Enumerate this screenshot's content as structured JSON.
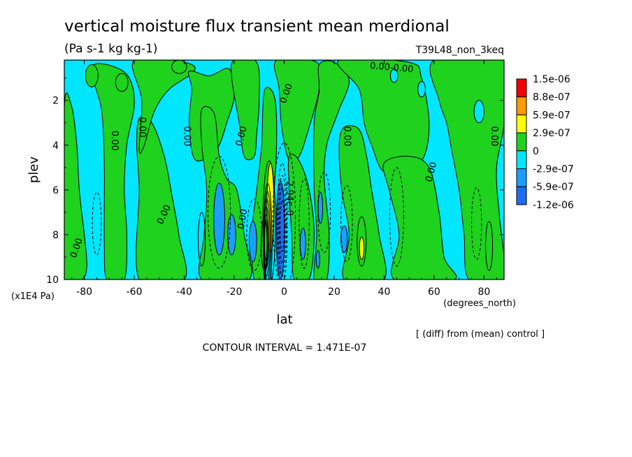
{
  "chart_data": {
    "type": "contour",
    "title": "vertical moisture flux transient mean merdional",
    "units": "(Pa s-1 kg kg-1)",
    "run_label": "T39L48_non_3keq",
    "xlabel": "lat",
    "xunits": "(degrees_north)",
    "ylabel": "plev",
    "yunits": "(x1E4 Pa)",
    "xlim": [
      -88,
      88
    ],
    "ylim": [
      10,
      0.2
    ],
    "x_ticks": [
      -80,
      -60,
      -40,
      -20,
      0,
      20,
      40,
      60,
      80
    ],
    "y_ticks": [
      2,
      4,
      6,
      8,
      10
    ],
    "x_tick_labels": [
      "-80",
      "-60",
      "-40",
      "-20",
      "0",
      "20",
      "40",
      "60",
      "80"
    ],
    "y_tick_labels": [
      "2",
      "4",
      "6",
      "8",
      "10"
    ],
    "contour_interval_text": "CONTOUR INTERVAL = 1.471E-07",
    "diff_note": "[ (diff) from (mean) control ]",
    "colorbar": {
      "labels": [
        "1.5e-06",
        "8.8e-07",
        "5.9e-07",
        "2.9e-07",
        "0",
        "-2.9e-07",
        "-5.9e-07",
        "-1.2e-06"
      ],
      "colors": [
        "#f00000",
        "#ff9a00",
        "#ffff00",
        "#1ed21e",
        "#00e6ff",
        "#19a0ff",
        "#1f6cf0"
      ]
    },
    "contour_labels": [
      "0.00",
      "0.00",
      "0.00",
      "0.00",
      "0.00",
      "0.00",
      "0.00",
      "0.00",
      "0.00",
      "0.00",
      "0.00",
      "0.00",
      "0.00",
      "0.00-0.00",
      "-2.94e-0"
    ],
    "colors": {
      "background": "#00e6ff",
      "positive": "#1ed21e",
      "yellow": "#ffff00",
      "neg_mid": "#19a0ff",
      "neg_strong": "#1f6cf0"
    },
    "regions": [
      {
        "level": "pos",
        "points": [
          [
            -88,
            2.3
          ],
          [
            -85,
            2.3
          ],
          [
            -83,
            4
          ],
          [
            -82,
            6
          ],
          [
            -80,
            8
          ],
          [
            -79,
            9.4
          ],
          [
            -81,
            10
          ],
          [
            -88,
            10
          ]
        ]
      },
      {
        "level": "pos",
        "points": [
          [
            -76,
            0.4
          ],
          [
            -68,
            0.5
          ],
          [
            -62,
            1
          ],
          [
            -60,
            2.2
          ],
          [
            -63,
            4
          ],
          [
            -64,
            6
          ],
          [
            -63,
            8
          ],
          [
            -64,
            10
          ],
          [
            -71,
            10
          ],
          [
            -72,
            8.3
          ],
          [
            -72,
            5
          ],
          [
            -73,
            2.5
          ],
          [
            -76,
            1.2
          ]
        ]
      },
      {
        "level": "pos",
        "points": [
          [
            -58,
            2.8
          ],
          [
            -53,
            3
          ],
          [
            -48,
            4.5
          ],
          [
            -45,
            6.2
          ],
          [
            -42,
            8.1
          ],
          [
            -40,
            10
          ],
          [
            -58,
            10
          ],
          [
            -58,
            6
          ],
          [
            -59,
            4
          ]
        ]
      },
      {
        "level": "pos",
        "points": [
          [
            -60,
            0.2
          ],
          [
            -40,
            0.3
          ],
          [
            -36,
            0.7
          ],
          [
            -46,
            1.5
          ],
          [
            -52,
            2.5
          ],
          [
            -56,
            4
          ],
          [
            -58,
            4.2
          ],
          [
            -57,
            2
          ]
        ]
      },
      {
        "level": "pos",
        "points": [
          [
            -38,
            0.7
          ],
          [
            -30,
            0.9
          ],
          [
            -22,
            0.6
          ],
          [
            -20,
            1.8
          ],
          [
            -23,
            3
          ],
          [
            -26,
            4
          ],
          [
            -30,
            4.5
          ],
          [
            -36,
            4.6
          ],
          [
            -38,
            3
          ],
          [
            -37,
            1.5
          ]
        ]
      },
      {
        "level": "pos",
        "points": [
          [
            -33,
            2.4
          ],
          [
            -28,
            2.6
          ],
          [
            -26,
            4.5
          ],
          [
            -23,
            5.5
          ],
          [
            -19,
            6
          ],
          [
            -16,
            8
          ],
          [
            -14,
            10
          ],
          [
            -33,
            10
          ],
          [
            -32,
            8
          ],
          [
            -31,
            6
          ],
          [
            -33,
            4
          ]
        ]
      },
      {
        "level": "pos",
        "points": [
          [
            -20,
            0.2
          ],
          [
            -11,
            0.3
          ],
          [
            -10,
            2
          ],
          [
            -11,
            3.5
          ],
          [
            -12,
            4.5
          ],
          [
            -16,
            4.5
          ],
          [
            -18,
            3
          ],
          [
            -21,
            1
          ]
        ]
      },
      {
        "level": "pos",
        "points": [
          [
            -8,
            1.6
          ],
          [
            -4,
            1.8
          ],
          [
            -3,
            3.5
          ],
          [
            -4,
            6
          ],
          [
            -6,
            8
          ],
          [
            -8,
            10
          ],
          [
            -12,
            10
          ],
          [
            -13,
            8
          ],
          [
            -11,
            6
          ],
          [
            -9,
            4
          ]
        ]
      },
      {
        "level": "pos",
        "points": [
          [
            -3,
            0.2
          ],
          [
            13,
            0.3
          ],
          [
            14,
            1.5
          ],
          [
            10,
            3.2
          ],
          [
            6,
            4.5
          ],
          [
            2,
            4.7
          ],
          [
            -1,
            3.2
          ],
          [
            -2,
            1.5
          ]
        ]
      },
      {
        "level": "pos",
        "points": [
          [
            2,
            4.5
          ],
          [
            6,
            4.7
          ],
          [
            10,
            6
          ],
          [
            12,
            8
          ],
          [
            10,
            10
          ],
          [
            4,
            10
          ],
          [
            3,
            8
          ],
          [
            2,
            6
          ]
        ]
      },
      {
        "level": "pos",
        "points": [
          [
            14,
            0.4
          ],
          [
            20,
            0.3
          ],
          [
            26,
            1.1
          ],
          [
            22,
            2.4
          ],
          [
            20,
            3
          ],
          [
            17,
            4
          ],
          [
            16,
            5.5
          ],
          [
            18,
            8
          ],
          [
            17,
            10
          ],
          [
            12,
            10
          ],
          [
            13,
            8
          ],
          [
            12,
            6
          ],
          [
            12,
            3
          ],
          [
            14,
            1.6
          ]
        ]
      },
      {
        "level": "pos",
        "points": [
          [
            24,
            3.2
          ],
          [
            30,
            3.3
          ],
          [
            33,
            4.5
          ],
          [
            35,
            6
          ],
          [
            38,
            8
          ],
          [
            40,
            10
          ],
          [
            24,
            10
          ],
          [
            26,
            8
          ],
          [
            23,
            6
          ],
          [
            22,
            4
          ]
        ]
      },
      {
        "level": "pos",
        "points": [
          [
            22,
            0.2
          ],
          [
            50,
            0.3
          ],
          [
            55,
            1
          ],
          [
            58,
            3
          ],
          [
            56,
            4.5
          ],
          [
            50,
            5
          ],
          [
            40,
            5.2
          ],
          [
            35,
            4
          ],
          [
            32,
            3
          ],
          [
            30,
            1.5
          ]
        ]
      },
      {
        "level": "pos",
        "points": [
          [
            40,
            4.8
          ],
          [
            50,
            4.5
          ],
          [
            58,
            5
          ],
          [
            62,
            7
          ],
          [
            64,
            9
          ],
          [
            68,
            10
          ],
          [
            44,
            10
          ],
          [
            46,
            8
          ],
          [
            42,
            6
          ]
        ]
      },
      {
        "level": "pos",
        "points": [
          [
            60,
            0.2
          ],
          [
            88,
            0.2
          ],
          [
            88,
            3
          ],
          [
            85,
            5
          ],
          [
            86,
            7
          ],
          [
            88,
            9
          ],
          [
            88,
            10
          ],
          [
            74,
            10
          ],
          [
            72,
            8
          ],
          [
            70,
            6
          ],
          [
            67,
            4.2
          ],
          [
            65,
            3
          ],
          [
            62,
            2
          ]
        ]
      }
    ],
    "small_patches": [
      {
        "level": "pos",
        "cx": -77,
        "cy": 0.9,
        "rx": 2.5,
        "ry": 0.5
      },
      {
        "level": "pos",
        "cx": -65,
        "cy": 1.2,
        "rx": 2.5,
        "ry": 0.4
      },
      {
        "level": "pos",
        "cx": -42,
        "cy": 0.5,
        "rx": 3,
        "ry": 0.3
      },
      {
        "level": "bg",
        "cx": 55,
        "cy": 1.5,
        "rx": 1.5,
        "ry": 0.35
      },
      {
        "level": "bg",
        "cx": 44,
        "cy": 0.9,
        "rx": 1.5,
        "ry": 0.3
      },
      {
        "level": "bg",
        "cx": 78,
        "cy": 2.5,
        "rx": 2,
        "ry": 0.5
      },
      {
        "level": "neg_mid",
        "cx": -26,
        "cy": 7.3,
        "rx": 2.2,
        "ry": 1.6
      },
      {
        "level": "neg_mid",
        "cx": -21,
        "cy": 8,
        "rx": 1.6,
        "ry": 0.9
      },
      {
        "level": "neg_mid",
        "cx": -12.5,
        "cy": 8.3,
        "rx": 1.5,
        "ry": 0.9
      },
      {
        "level": "neg_strong",
        "cx": -1.5,
        "cy": 7.8,
        "rx": 1.7,
        "ry": 2.2
      },
      {
        "level": "neg_mid",
        "cx": 7.5,
        "cy": 8.4,
        "rx": 1.1,
        "ry": 0.7
      },
      {
        "level": "neg_mid",
        "cx": 14.5,
        "cy": 6.8,
        "rx": 0.9,
        "ry": 0.7
      },
      {
        "level": "neg_mid",
        "cx": 13.5,
        "cy": 9.1,
        "rx": 0.7,
        "ry": 0.4
      },
      {
        "level": "neg_mid",
        "cx": 24,
        "cy": 8.2,
        "rx": 1.3,
        "ry": 0.6
      },
      {
        "level": "yellow",
        "cx": -5.5,
        "cy": 6.8,
        "rx": 1.4,
        "ry": 2.0
      },
      {
        "level": "yellow",
        "cx": 31,
        "cy": 8.6,
        "rx": 0.9,
        "ry": 0.5
      }
    ],
    "dashed_contours": [
      {
        "cx": -26,
        "cy": 7,
        "rx": 4.5,
        "ry": 2.5
      },
      {
        "cx": -12,
        "cy": 8,
        "rx": 3,
        "ry": 1.6
      },
      {
        "cx": 0,
        "cy": 7.2,
        "rx": 4.5,
        "ry": 3.3
      },
      {
        "cx": 8,
        "cy": 7.5,
        "rx": 2,
        "ry": 2
      },
      {
        "cx": 16,
        "cy": 7,
        "rx": 2.5,
        "ry": 1.8
      },
      {
        "cx": 25,
        "cy": 7.5,
        "rx": 2.3,
        "ry": 1.7
      },
      {
        "cx": 45,
        "cy": 7.2,
        "rx": 2.8,
        "ry": 2.2
      },
      {
        "cx": 77,
        "cy": 7.5,
        "rx": 2,
        "ry": 1.6
      },
      {
        "cx": -75,
        "cy": 7.5,
        "rx": 1.8,
        "ry": 1.4
      }
    ],
    "solid_contours": [
      {
        "cx": -6,
        "cy": 7.5,
        "rx": 2.5,
        "ry": 2.8
      },
      {
        "cx": -8,
        "cy": 8.4,
        "rx": 1.2,
        "ry": 1.2
      },
      {
        "cx": 31,
        "cy": 8.3,
        "rx": 1.8,
        "ry": 1.1
      },
      {
        "cx": -33,
        "cy": 8.2,
        "rx": 1.4,
        "ry": 1.2
      },
      {
        "cx": 82,
        "cy": 8.5,
        "rx": 1.4,
        "ry": 1.1
      }
    ],
    "label_positions": [
      {
        "text_index": 0,
        "lat": -83,
        "plev": 8.6,
        "rot": -70
      },
      {
        "text_index": 1,
        "lat": -68,
        "plev": 3.8,
        "rot": 90
      },
      {
        "text_index": 2,
        "lat": -57,
        "plev": 3.2,
        "rot": 90
      },
      {
        "text_index": 3,
        "lat": -48,
        "plev": 7.1,
        "rot": -65
      },
      {
        "text_index": 4,
        "lat": -39,
        "plev": 3.6,
        "rot": 90
      },
      {
        "text_index": 5,
        "lat": -16.5,
        "plev": 7.3,
        "rot": -80
      },
      {
        "text_index": 6,
        "lat": -17,
        "plev": 3.6,
        "rot": -75
      },
      {
        "text_index": 7,
        "lat": 1,
        "plev": 1.7,
        "rot": -70
      },
      {
        "text_index": 8,
        "lat": 25,
        "plev": 3.6,
        "rot": 90
      },
      {
        "text_index": 9,
        "lat": 59,
        "plev": 5.2,
        "rot": -75
      },
      {
        "text_index": 10,
        "lat": 84,
        "plev": 3.6,
        "rot": 90
      },
      {
        "text_index": 13,
        "lat": 43,
        "plev": 0.55,
        "rot": 5
      },
      {
        "text_index": 14,
        "lat": 2,
        "plev": 6.3,
        "rot": 90
      }
    ]
  }
}
